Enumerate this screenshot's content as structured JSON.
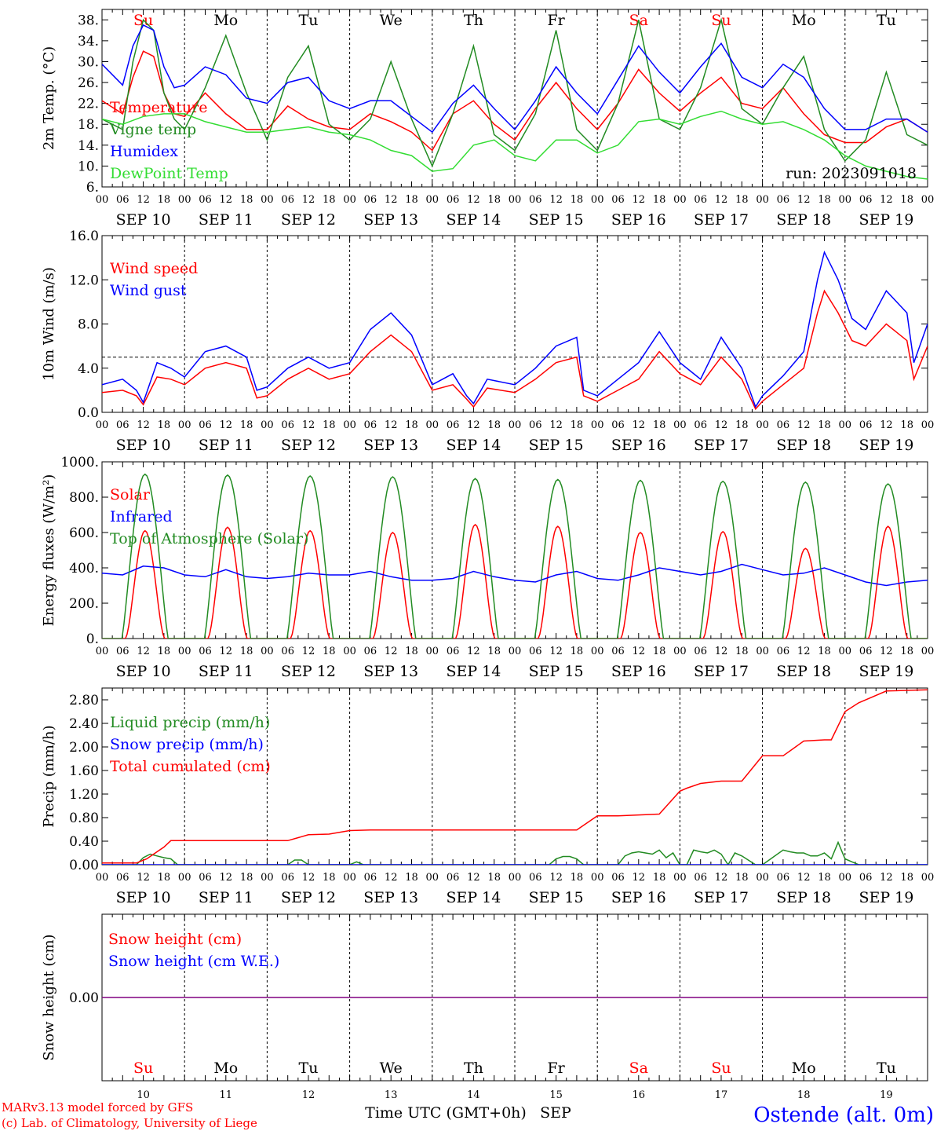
{
  "meteogram": {
    "run_label": "run: 2023091018",
    "credits": [
      "MARv3.13 model forced by GFS",
      "(c) Lab. of Climatology, University of Liege"
    ],
    "station": "Ostende (alt. 0m)",
    "bottom_axis_title": "Time UTC (GMT+0h)",
    "bottom_axis_month": "SEP",
    "day_names": [
      "Su",
      "Mo",
      "Tu",
      "We",
      "Th",
      "Fr",
      "Sa",
      "Su",
      "Mo",
      "Tu"
    ],
    "weekend_flags": [
      true,
      false,
      false,
      false,
      false,
      false,
      true,
      true,
      false,
      false
    ],
    "day_numbers": [
      "10",
      "11",
      "12",
      "13",
      "14",
      "15",
      "16",
      "17",
      "18",
      "19"
    ],
    "date_labels": [
      "SEP 10",
      "SEP 11",
      "SEP 12",
      "SEP 13",
      "SEP 14",
      "SEP 15",
      "SEP 16",
      "SEP 17",
      "SEP 18",
      "SEP 19"
    ],
    "hour_labels": [
      "00",
      "06",
      "12",
      "18"
    ],
    "final_hour_label": "00",
    "colors": {
      "red": "#ff0000",
      "green": "#228b22",
      "blue": "#0000ff",
      "lightgreen": "#33dd33",
      "weekend": "#ff0000",
      "purple": "#800080"
    }
  },
  "chart_data": [
    {
      "type": "line",
      "ylabel": "2m Temp. (°C)",
      "ylim": [
        6,
        40
      ],
      "yticks": [
        "6.",
        "10.",
        "14.",
        "18.",
        "22.",
        "26.",
        "30.",
        "34.",
        "38."
      ],
      "ytick_values": [
        6,
        10,
        14,
        18,
        22,
        26,
        30,
        34,
        38
      ],
      "x_unit": "hours since SEP 10 00 UTC",
      "series": [
        {
          "name": "Temperature",
          "color": "red",
          "x": [
            0,
            6,
            9,
            12,
            15,
            18,
            21,
            24,
            30,
            36,
            42,
            48,
            54,
            60,
            66,
            72,
            78,
            84,
            90,
            96,
            102,
            108,
            114,
            120,
            126,
            132,
            138,
            144,
            150,
            156,
            162,
            168,
            174,
            180,
            186,
            192,
            198,
            204,
            210,
            216,
            222,
            228,
            234,
            240
          ],
          "y": [
            22.5,
            20,
            27,
            32,
            31,
            24,
            20,
            19.5,
            24,
            20,
            17,
            17,
            21.5,
            19,
            17.5,
            17,
            20,
            18.5,
            16.5,
            13,
            20,
            22.5,
            18,
            15,
            21,
            26,
            21,
            17,
            22,
            28.5,
            24,
            20.5,
            24,
            27,
            22,
            21,
            25,
            20,
            16,
            14.5,
            14.5,
            17.5,
            19,
            16.5
          ]
        },
        {
          "name": "Vigne temp",
          "color": "green",
          "x": [
            0,
            6,
            9,
            12,
            15,
            18,
            21,
            24,
            30,
            36,
            42,
            48,
            54,
            60,
            66,
            72,
            78,
            84,
            90,
            96,
            102,
            108,
            114,
            120,
            126,
            132,
            138,
            144,
            150,
            156,
            162,
            168,
            174,
            180,
            186,
            192,
            198,
            204,
            210,
            216,
            222,
            228,
            234,
            240
          ],
          "y": [
            19,
            17,
            30,
            38,
            36,
            24,
            19,
            17,
            25,
            35,
            24,
            15,
            27,
            33,
            18,
            15,
            19,
            30,
            19,
            10,
            20,
            33,
            16,
            13,
            20,
            36,
            17,
            13,
            22,
            38,
            19,
            17,
            25,
            38,
            21,
            18,
            25,
            31,
            17,
            11,
            15,
            28,
            16,
            14
          ]
        },
        {
          "name": "Humidex",
          "color": "blue",
          "x": [
            0,
            6,
            9,
            12,
            15,
            18,
            21,
            24,
            30,
            36,
            42,
            48,
            54,
            60,
            66,
            72,
            78,
            84,
            90,
            96,
            102,
            108,
            114,
            120,
            126,
            132,
            138,
            144,
            150,
            156,
            162,
            168,
            174,
            180,
            186,
            192,
            198,
            204,
            210,
            216,
            222,
            228,
            234,
            240
          ],
          "y": [
            29.5,
            25.5,
            33,
            37,
            36,
            29,
            25,
            25.5,
            29,
            27.5,
            23,
            22,
            26,
            27,
            22.5,
            21,
            22.5,
            22.5,
            19.5,
            16.5,
            22,
            25.5,
            21,
            17,
            22.5,
            29,
            24,
            20,
            26.5,
            33,
            28,
            24,
            29,
            33.5,
            27,
            25,
            29.5,
            27,
            21,
            17,
            17,
            19,
            19,
            16.5
          ]
        },
        {
          "name": "DewPoint Temp",
          "color": "lightgreen",
          "x": [
            0,
            6,
            12,
            18,
            24,
            30,
            36,
            42,
            48,
            54,
            60,
            66,
            72,
            78,
            84,
            90,
            96,
            102,
            108,
            114,
            120,
            126,
            132,
            138,
            144,
            150,
            156,
            162,
            168,
            174,
            180,
            186,
            192,
            198,
            204,
            210,
            216,
            222,
            228,
            234,
            240
          ],
          "y": [
            19,
            18,
            19.5,
            20,
            20,
            18.5,
            17.5,
            16.5,
            16.5,
            17,
            17.5,
            16.5,
            16,
            15,
            13,
            12,
            9,
            9.5,
            14,
            15,
            12,
            11,
            15,
            15,
            12.5,
            14,
            18.5,
            19,
            18,
            19.5,
            20.5,
            19,
            18,
            18.5,
            17,
            15,
            12,
            10,
            9,
            8,
            7.5
          ]
        }
      ],
      "annotations": [
        "run: 2023091018"
      ]
    },
    {
      "type": "line",
      "ylabel": "10m Wind (m/s)",
      "ylim": [
        0,
        16
      ],
      "yticks": [
        "0.0",
        "4.0",
        "8.0",
        "12.0",
        "16.0"
      ],
      "ytick_values": [
        0,
        4,
        8,
        12,
        16
      ],
      "reference_line": 5,
      "x_unit": "hours since SEP 10 00 UTC",
      "series": [
        {
          "name": "Wind speed",
          "color": "red",
          "x": [
            0,
            6,
            10,
            12,
            16,
            20,
            24,
            30,
            36,
            42,
            45,
            48,
            54,
            60,
            66,
            72,
            78,
            84,
            90,
            96,
            102,
            106,
            108,
            112,
            120,
            126,
            132,
            138,
            140,
            144,
            150,
            156,
            162,
            168,
            174,
            180,
            186,
            190,
            192,
            198,
            204,
            208,
            210,
            214,
            218,
            222,
            228,
            234,
            236,
            240
          ],
          "y": [
            1.8,
            2,
            1.5,
            0.7,
            3.2,
            3,
            2.5,
            4,
            4.5,
            4,
            1.3,
            1.5,
            3,
            4,
            3,
            3.5,
            5.5,
            7,
            5.5,
            2,
            2.5,
            1.2,
            0.5,
            2.2,
            1.8,
            3,
            4.5,
            5,
            1.5,
            1,
            2,
            3,
            5.5,
            3.5,
            2.5,
            5,
            3,
            0.3,
            1,
            2.5,
            4,
            9,
            11,
            9,
            6.5,
            6,
            8,
            6.5,
            3,
            6
          ]
        },
        {
          "name": "Wind gust",
          "color": "blue",
          "x": [
            0,
            6,
            10,
            12,
            16,
            20,
            24,
            30,
            36,
            42,
            45,
            48,
            54,
            60,
            66,
            72,
            78,
            84,
            90,
            96,
            102,
            106,
            108,
            112,
            120,
            126,
            132,
            138,
            140,
            144,
            150,
            156,
            162,
            168,
            174,
            180,
            186,
            190,
            192,
            198,
            204,
            208,
            210,
            214,
            218,
            222,
            228,
            234,
            236,
            240
          ],
          "y": [
            2.5,
            3,
            2,
            0.9,
            4.5,
            4,
            3.2,
            5.5,
            6,
            5,
            2,
            2.3,
            4,
            5,
            4,
            4.5,
            7.5,
            9,
            7,
            2.5,
            3.5,
            1.5,
            0.8,
            3,
            2.5,
            4,
            6,
            6.8,
            2,
            1.5,
            3,
            4.5,
            7.3,
            4.5,
            3,
            6.8,
            4,
            0.5,
            1.5,
            3.3,
            5.5,
            12,
            14.5,
            12,
            8.5,
            7.5,
            11,
            9,
            4.5,
            8
          ]
        }
      ]
    },
    {
      "type": "line",
      "ylabel": "Energy fluxes (W/m²)",
      "ylim": [
        0,
        1000
      ],
      "yticks": [
        "0.",
        "200.",
        "400.",
        "600.",
        "800.",
        "1000."
      ],
      "ytick_values": [
        0,
        200,
        400,
        600,
        800,
        1000
      ],
      "x_unit": "hours since SEP 10 00 UTC",
      "solar_noon_hour": 12.5,
      "solar_half_width_hours": 6.7,
      "series": [
        {
          "name": "Solar",
          "color": "red",
          "daily_peaks": [
            610,
            630,
            610,
            600,
            645,
            635,
            600,
            605,
            510,
            635
          ]
        },
        {
          "name": "Infrared",
          "color": "blue",
          "x": [
            0,
            6,
            12,
            18,
            24,
            30,
            36,
            42,
            48,
            54,
            60,
            66,
            72,
            78,
            84,
            90,
            96,
            102,
            108,
            114,
            120,
            126,
            132,
            138,
            144,
            150,
            156,
            162,
            168,
            174,
            180,
            186,
            192,
            198,
            204,
            210,
            216,
            222,
            228,
            234,
            240
          ],
          "y": [
            370,
            360,
            410,
            400,
            360,
            350,
            390,
            350,
            340,
            350,
            370,
            360,
            360,
            380,
            350,
            330,
            330,
            340,
            380,
            350,
            330,
            320,
            360,
            380,
            340,
            330,
            360,
            400,
            380,
            360,
            380,
            420,
            390,
            360,
            370,
            400,
            360,
            320,
            300,
            320,
            330
          ]
        },
        {
          "name": "Top of Atmosphere (Solar)",
          "color": "green",
          "daily_peaks": [
            930,
            925,
            920,
            915,
            905,
            900,
            895,
            890,
            885,
            875
          ]
        }
      ]
    },
    {
      "type": "line",
      "ylabel": "Precip (mm/h)",
      "ylim": [
        0,
        3.0
      ],
      "yticks": [
        "0.00",
        "0.40",
        "0.80",
        "1.20",
        "1.60",
        "2.00",
        "2.40",
        "2.80"
      ],
      "ytick_values": [
        0,
        0.4,
        0.8,
        1.2,
        1.6,
        2.0,
        2.4,
        2.8
      ],
      "x_unit": "hours since SEP 10 00 UTC",
      "series": [
        {
          "name": "Liquid precip (mm/h)",
          "color": "green",
          "x": [
            0,
            10,
            12,
            14,
            16,
            18,
            20,
            22,
            54,
            56,
            58,
            60,
            72,
            74,
            76,
            130,
            132,
            134,
            136,
            138,
            140,
            150,
            152,
            154,
            156,
            158,
            160,
            162,
            164,
            166,
            168,
            170,
            172,
            174,
            176,
            178,
            180,
            182,
            184,
            186,
            190,
            192,
            198,
            200,
            202,
            204,
            206,
            208,
            210,
            212,
            214,
            216,
            218,
            220,
            230,
            240
          ],
          "y": [
            0,
            0,
            0.12,
            0.18,
            0.15,
            0.12,
            0.1,
            0,
            0,
            0.08,
            0.08,
            0,
            0,
            0.05,
            0,
            0,
            0.1,
            0.14,
            0.14,
            0.1,
            0,
            0,
            0.15,
            0.2,
            0.22,
            0.2,
            0.18,
            0.25,
            0.12,
            0.2,
            0,
            0,
            0.25,
            0.22,
            0.2,
            0.25,
            0.18,
            0,
            0.2,
            0.15,
            0,
            0,
            0.25,
            0.22,
            0.2,
            0.2,
            0.15,
            0.15,
            0.2,
            0.1,
            0.38,
            0.1,
            0.05,
            0,
            0,
            0
          ]
        },
        {
          "name": "Snow precip (mm/h)",
          "color": "blue",
          "x": [
            0,
            240
          ],
          "y": [
            0,
            0
          ]
        },
        {
          "name": "Total cumulated (cm)",
          "color": "red",
          "x": [
            0,
            10,
            13,
            16,
            18,
            20,
            24,
            48,
            54,
            60,
            66,
            72,
            78,
            96,
            120,
            138,
            144,
            150,
            162,
            168,
            170,
            174,
            180,
            186,
            192,
            198,
            204,
            210,
            212,
            216,
            220,
            228,
            240
          ],
          "y": [
            0.03,
            0.03,
            0.1,
            0.22,
            0.3,
            0.41,
            0.41,
            0.41,
            0.41,
            0.51,
            0.52,
            0.58,
            0.59,
            0.59,
            0.59,
            0.59,
            0.83,
            0.83,
            0.86,
            1.25,
            1.3,
            1.38,
            1.42,
            1.42,
            1.85,
            1.85,
            2.1,
            2.12,
            2.12,
            2.6,
            2.75,
            2.95,
            2.97
          ]
        }
      ]
    },
    {
      "type": "line",
      "ylabel": "Snow height (cm)",
      "ylim": [
        -1,
        1
      ],
      "yticks": [
        "0.00"
      ],
      "ytick_values": [
        0
      ],
      "x_unit": "hours since SEP 10 00 UTC",
      "series": [
        {
          "name": "Snow height (cm)",
          "color": "red",
          "x": [
            0,
            240
          ],
          "y": [
            0,
            0
          ]
        },
        {
          "name": "Snow height (cm W.E.)",
          "color": "blue",
          "x": [
            0,
            240
          ],
          "y": [
            0,
            0
          ]
        }
      ]
    }
  ]
}
